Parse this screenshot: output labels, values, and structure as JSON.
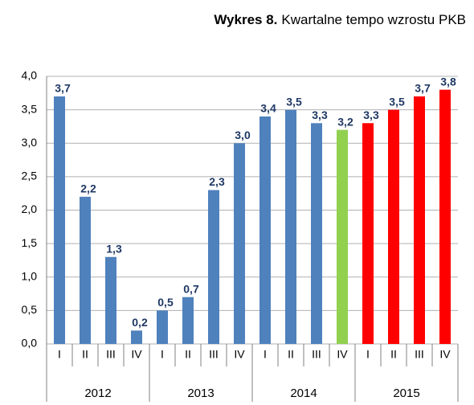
{
  "chart_data": {
    "type": "bar",
    "title_label": "Wykres 8.",
    "title": "Kwartalne tempo wzrostu PKB",
    "categories": [
      "I",
      "II",
      "III",
      "IV",
      "I",
      "II",
      "III",
      "IV",
      "I",
      "II",
      "III",
      "IV",
      "I",
      "II",
      "III",
      "IV"
    ],
    "years": [
      "2012",
      "2013",
      "2014",
      "2015"
    ],
    "values": [
      3.7,
      2.2,
      1.3,
      0.2,
      0.5,
      0.7,
      2.3,
      3.0,
      3.4,
      3.5,
      3.3,
      3.2,
      3.3,
      3.5,
      3.7,
      3.8
    ],
    "value_labels": [
      "3,7",
      "2,2",
      "1,3",
      "0,2",
      "0,5",
      "0,7",
      "2,3",
      "3,0",
      "3,4",
      "3,5",
      "3,3",
      "3,2",
      "3,3",
      "3,5",
      "3,7",
      "3,8"
    ],
    "colors": [
      "#4f81bd",
      "#4f81bd",
      "#4f81bd",
      "#4f81bd",
      "#4f81bd",
      "#4f81bd",
      "#4f81bd",
      "#4f81bd",
      "#4f81bd",
      "#4f81bd",
      "#4f81bd",
      "#92d050",
      "#ff0000",
      "#ff0000",
      "#ff0000",
      "#ff0000"
    ],
    "ylim": [
      0,
      4
    ],
    "yticks": [
      {
        "value": 0,
        "label": "0,0"
      },
      {
        "value": 0.5,
        "label": "0,5"
      },
      {
        "value": 1,
        "label": "1,0"
      },
      {
        "value": 1.5,
        "label": "1,5"
      },
      {
        "value": 2,
        "label": "2,0"
      },
      {
        "value": 2.5,
        "label": "2,5"
      },
      {
        "value": 3,
        "label": "3,0"
      },
      {
        "value": 3.5,
        "label": "3,5"
      },
      {
        "value": 4,
        "label": "4,0"
      }
    ],
    "grid": true
  }
}
